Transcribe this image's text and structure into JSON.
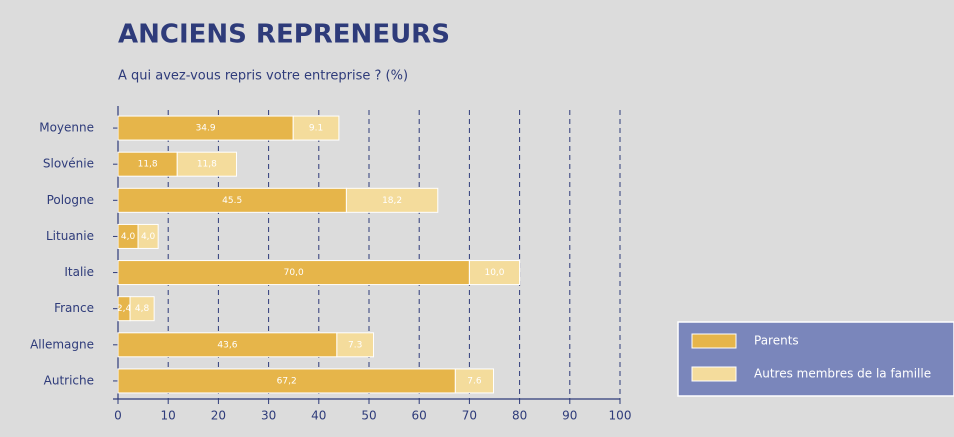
{
  "chart_data": {
    "type": "stacked-barh",
    "title": "ANCIENS REPRENEURS",
    "subtitle": "A qui avez-vous repris votre entreprise ? (%)",
    "categories": [
      "Moyenne",
      "Slovénie",
      "Pologne",
      "Lituanie",
      "Italie",
      "France",
      "Allemagne",
      "Autriche"
    ],
    "series": [
      {
        "name": "Parents",
        "color": "#e6b54a",
        "values": [
          34.9,
          11.8,
          45.5,
          4.0,
          70.0,
          2.4,
          43.6,
          67.2
        ],
        "value_labels": [
          "34.9",
          "11,8",
          "45.5",
          "4,0",
          "70,0",
          "2,4",
          "43,6",
          "67,2"
        ]
      },
      {
        "name": "Autres membres de la famille",
        "color": "#f4dc9c",
        "values": [
          9.1,
          11.8,
          18.2,
          4.0,
          10.0,
          4.8,
          7.3,
          7.6
        ],
        "value_labels": [
          "9.1",
          "11,8",
          "18,2",
          "4,0",
          "10,0",
          "4,8",
          "7.3",
          "7.6"
        ]
      }
    ],
    "xlim": [
      0,
      100
    ],
    "xticks": [
      0,
      10,
      20,
      30,
      40,
      50,
      60,
      70,
      80,
      90,
      100
    ],
    "grid": true
  }
}
